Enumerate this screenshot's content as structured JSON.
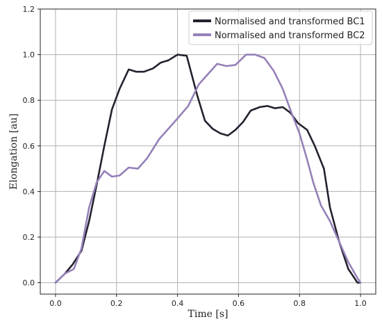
{
  "chart_data": {
    "type": "line",
    "title": "",
    "xlabel": "Time [s]",
    "ylabel": "Elongation [au]",
    "xlim": [
      -0.05,
      1.05
    ],
    "ylim": [
      -0.05,
      1.2
    ],
    "xticks": [
      0.0,
      0.2,
      0.4,
      0.6,
      0.8,
      1.0
    ],
    "xtick_labels": [
      "0.0",
      "0.2",
      "0.4",
      "0.6",
      "0.8",
      "1.0"
    ],
    "yticks": [
      0.0,
      0.2,
      0.4,
      0.6,
      0.8,
      1.0,
      1.2
    ],
    "ytick_labels": [
      "0.0",
      "0.2",
      "0.4",
      "0.6",
      "0.8",
      "1.0",
      "1.2"
    ],
    "grid": true,
    "legend_position": "top-right",
    "series": [
      {
        "name": "Normalised and transformed BC1",
        "color": "#24212f",
        "x": [
          0.0,
          0.031,
          0.056,
          0.085,
          0.11,
          0.135,
          0.16,
          0.185,
          0.21,
          0.24,
          0.265,
          0.29,
          0.32,
          0.345,
          0.37,
          0.4,
          0.43,
          0.465,
          0.49,
          0.515,
          0.54,
          0.565,
          0.59,
          0.615,
          0.64,
          0.67,
          0.695,
          0.72,
          0.745,
          0.77,
          0.795,
          0.825,
          0.85,
          0.88,
          0.9,
          0.93,
          0.96,
          0.99,
          1.0
        ],
        "y": [
          0.0,
          0.04,
          0.08,
          0.14,
          0.27,
          0.43,
          0.6,
          0.76,
          0.85,
          0.935,
          0.925,
          0.925,
          0.94,
          0.965,
          0.975,
          1.0,
          0.995,
          0.82,
          0.71,
          0.675,
          0.655,
          0.645,
          0.67,
          0.705,
          0.755,
          0.77,
          0.775,
          0.765,
          0.77,
          0.745,
          0.7,
          0.67,
          0.6,
          0.5,
          0.33,
          0.18,
          0.06,
          0.0,
          0.0
        ]
      },
      {
        "name": "Normalised and transformed BC2",
        "color": "#9580b8",
        "x": [
          0.0,
          0.031,
          0.06,
          0.085,
          0.11,
          0.135,
          0.16,
          0.185,
          0.21,
          0.24,
          0.27,
          0.3,
          0.34,
          0.37,
          0.4,
          0.435,
          0.47,
          0.5,
          0.53,
          0.56,
          0.59,
          0.625,
          0.655,
          0.685,
          0.715,
          0.745,
          0.775,
          0.8,
          0.825,
          0.845,
          0.87,
          0.9,
          0.93,
          0.96,
          0.99,
          1.0
        ],
        "y": [
          0.0,
          0.04,
          0.06,
          0.15,
          0.33,
          0.44,
          0.49,
          0.465,
          0.47,
          0.505,
          0.5,
          0.545,
          0.63,
          0.675,
          0.72,
          0.775,
          0.87,
          0.915,
          0.96,
          0.95,
          0.955,
          1.0,
          1.0,
          0.985,
          0.93,
          0.85,
          0.74,
          0.655,
          0.54,
          0.44,
          0.34,
          0.27,
          0.18,
          0.09,
          0.02,
          0.0
        ]
      }
    ]
  }
}
